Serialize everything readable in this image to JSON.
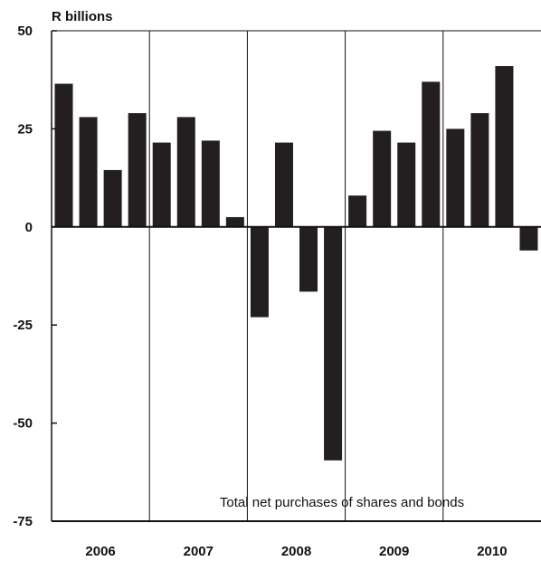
{
  "chart_data": {
    "type": "bar",
    "title": "",
    "ylabel": "R billions",
    "xlabel": "",
    "annotation": "Total net purchases of shares and bonds",
    "ylim": [
      -75,
      50
    ],
    "yticks": [
      50,
      25,
      0,
      -25,
      -50,
      -75
    ],
    "year_labels": [
      "2006",
      "2007",
      "2008",
      "2009",
      "2010"
    ],
    "grid": "vertical lines between years",
    "series": [
      {
        "values": [
          36.5,
          28,
          14.5,
          29,
          21.5,
          28,
          22,
          2.5,
          -23,
          21.5,
          -16.5,
          -59.5,
          8,
          24.5,
          21.5,
          37,
          25,
          29,
          41,
          -6
        ]
      }
    ],
    "colors": {
      "bars": "#231f20",
      "axis": "#111111",
      "background": "#ffffff"
    }
  }
}
